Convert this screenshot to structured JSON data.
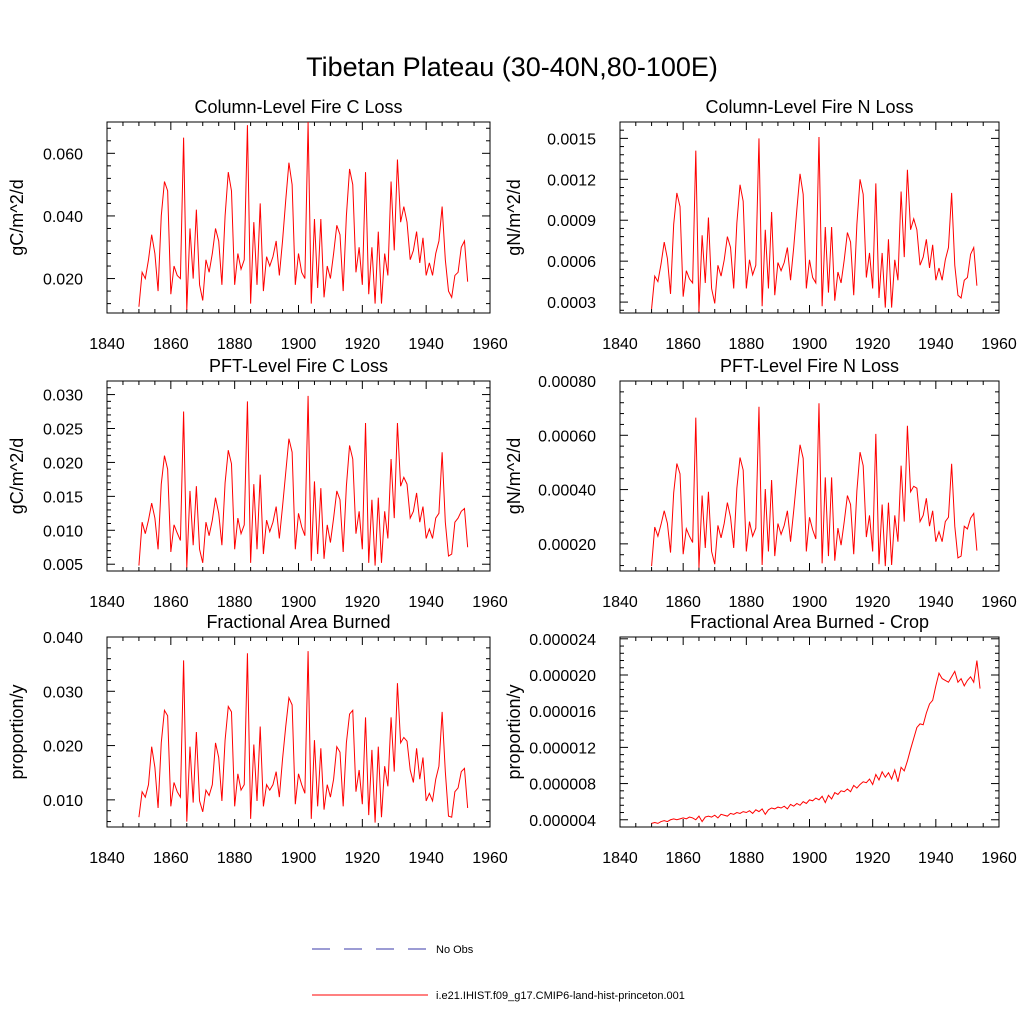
{
  "figure_title": "Tibetan Plateau (30-40N,80-100E)",
  "legend": {
    "items": [
      {
        "label": "No Obs",
        "color": "#3a3aa8",
        "dashed": true
      },
      {
        "label": "i.e21.IHIST.f09_g17.CMIP6-land-hist-princeton.001",
        "color": "#ff0000",
        "dashed": false
      }
    ]
  },
  "chart_data": [
    {
      "type": "line",
      "title": "Column-Level Fire C Loss",
      "ylabel": "gC/m^2/d",
      "xlim": [
        1840,
        1960
      ],
      "xticks": [
        "1840",
        "1860",
        "1880",
        "1900",
        "1920",
        "1940",
        "1960"
      ],
      "ylim": [
        0.009,
        0.07
      ],
      "yticks": [
        0.02,
        0.04,
        0.06
      ],
      "ytick_labels": [
        "0.020",
        "0.040",
        "0.060"
      ],
      "x_start": 1850,
      "series": [
        {
          "color": "#ff0000",
          "values": [
            0.011,
            0.022,
            0.02,
            0.026,
            0.034,
            0.028,
            0.016,
            0.04,
            0.051,
            0.048,
            0.015,
            0.024,
            0.021,
            0.02,
            0.065,
            0.01,
            0.036,
            0.02,
            0.042,
            0.018,
            0.013,
            0.026,
            0.022,
            0.028,
            0.036,
            0.032,
            0.018,
            0.04,
            0.054,
            0.048,
            0.018,
            0.028,
            0.023,
            0.026,
            0.069,
            0.012,
            0.038,
            0.018,
            0.044,
            0.016,
            0.027,
            0.024,
            0.027,
            0.032,
            0.021,
            0.032,
            0.045,
            0.057,
            0.05,
            0.018,
            0.028,
            0.022,
            0.02,
            0.07,
            0.012,
            0.039,
            0.017,
            0.039,
            0.014,
            0.024,
            0.02,
            0.028,
            0.037,
            0.034,
            0.016,
            0.04,
            0.055,
            0.05,
            0.022,
            0.03,
            0.018,
            0.054,
            0.015,
            0.03,
            0.012,
            0.035,
            0.012,
            0.028,
            0.021,
            0.051,
            0.029,
            0.058,
            0.038,
            0.043,
            0.038,
            0.026,
            0.029,
            0.035,
            0.025,
            0.033,
            0.021,
            0.025,
            0.021,
            0.028,
            0.032,
            0.043,
            0.026,
            0.016,
            0.014,
            0.021,
            0.022,
            0.03,
            0.032,
            0.019
          ]
        }
      ]
    },
    {
      "type": "line",
      "title": "Column-Level Fire N Loss",
      "ylabel": "gN/m^2/d",
      "xlim": [
        1840,
        1960
      ],
      "xticks": [
        "1840",
        "1860",
        "1880",
        "1900",
        "1920",
        "1940",
        "1960"
      ],
      "ylim": [
        0.00022,
        0.00162
      ],
      "yticks": [
        0.0003,
        0.0006,
        0.0009,
        0.0012,
        0.0015
      ],
      "ytick_labels": [
        "0.0003",
        "0.0006",
        "0.0009",
        "0.0012",
        "0.0015"
      ],
      "x_start": 1850,
      "series": [
        {
          "color": "#ff0000",
          "values": [
            0.00025,
            0.00049,
            0.00045,
            0.00058,
            0.00074,
            0.00062,
            0.00036,
            0.00087,
            0.0011,
            0.001,
            0.00034,
            0.00053,
            0.00047,
            0.00044,
            0.00141,
            0.00023,
            0.00079,
            0.00044,
            0.00092,
            0.0004,
            0.00029,
            0.00057,
            0.00049,
            0.00061,
            0.00078,
            0.0007,
            0.0004,
            0.00088,
            0.00116,
            0.00104,
            0.0004,
            0.00061,
            0.0005,
            0.00057,
            0.0015,
            0.00027,
            0.00083,
            0.0004,
            0.00096,
            0.00035,
            0.00059,
            0.00053,
            0.00059,
            0.0007,
            0.00046,
            0.0007,
            0.00098,
            0.00124,
            0.00109,
            0.0004,
            0.00061,
            0.00048,
            0.00044,
            0.00151,
            0.00027,
            0.00085,
            0.00037,
            0.00085,
            0.00031,
            0.00052,
            0.00044,
            0.00061,
            0.00081,
            0.00074,
            0.00035,
            0.00087,
            0.0012,
            0.00109,
            0.00048,
            0.00066,
            0.0004,
            0.00117,
            0.00033,
            0.00066,
            0.00026,
            0.00076,
            0.00026,
            0.00061,
            0.00046,
            0.00111,
            0.00063,
            0.00127,
            0.00083,
            0.00091,
            0.00083,
            0.00057,
            0.00063,
            0.00076,
            0.00055,
            0.00072,
            0.00046,
            0.00055,
            0.00046,
            0.00061,
            0.0007,
            0.0011,
            0.00057,
            0.00035,
            0.00033,
            0.00046,
            0.00048,
            0.00065,
            0.0007,
            0.00042
          ]
        }
      ]
    },
    {
      "type": "line",
      "title": "PFT-Level Fire C Loss",
      "ylabel": "gC/m^2/d",
      "xlim": [
        1840,
        1960
      ],
      "xticks": [
        "1840",
        "1860",
        "1880",
        "1900",
        "1920",
        "1940",
        "1960"
      ],
      "ylim": [
        0.004,
        0.032
      ],
      "yticks": [
        0.005,
        0.01,
        0.015,
        0.02,
        0.025,
        0.03
      ],
      "ytick_labels": [
        "0.005",
        "0.010",
        "0.015",
        "0.020",
        "0.025",
        "0.030"
      ],
      "x_start": 1850,
      "series": [
        {
          "color": "#ff0000",
          "values": [
            0.0048,
            0.0112,
            0.0095,
            0.0115,
            0.014,
            0.0118,
            0.0072,
            0.0168,
            0.021,
            0.019,
            0.0068,
            0.0108,
            0.0096,
            0.0085,
            0.0275,
            0.0045,
            0.0158,
            0.0078,
            0.0165,
            0.0072,
            0.0052,
            0.0112,
            0.0092,
            0.0115,
            0.0148,
            0.0125,
            0.0078,
            0.017,
            0.0218,
            0.0198,
            0.0072,
            0.0118,
            0.0095,
            0.0108,
            0.029,
            0.0052,
            0.0168,
            0.0072,
            0.0182,
            0.0065,
            0.0115,
            0.0098,
            0.0112,
            0.0135,
            0.0088,
            0.0135,
            0.0185,
            0.0235,
            0.0215,
            0.0072,
            0.0125,
            0.0105,
            0.0092,
            0.0298,
            0.0055,
            0.0172,
            0.0065,
            0.0162,
            0.0058,
            0.0108,
            0.0082,
            0.0118,
            0.0158,
            0.0145,
            0.0068,
            0.0165,
            0.0225,
            0.0205,
            0.0095,
            0.0128,
            0.0072,
            0.0258,
            0.0052,
            0.0145,
            0.0048,
            0.0148,
            0.0052,
            0.0128,
            0.0088,
            0.0205,
            0.0118,
            0.0258,
            0.0165,
            0.0178,
            0.0168,
            0.0118,
            0.0128,
            0.0155,
            0.0112,
            0.0135,
            0.0088,
            0.0102,
            0.0088,
            0.0118,
            0.0125,
            0.0215,
            0.0112,
            0.0062,
            0.0065,
            0.0112,
            0.0118,
            0.0128,
            0.0132,
            0.0075
          ]
        }
      ]
    },
    {
      "type": "line",
      "title": "PFT-Level Fire N Loss",
      "ylabel": "gN/m^2/d",
      "xlim": [
        1840,
        1960
      ],
      "xticks": [
        "1840",
        "1860",
        "1880",
        "1900",
        "1920",
        "1940",
        "1960"
      ],
      "ylim": [
        0.0001,
        0.0008
      ],
      "yticks": [
        0.0002,
        0.0004,
        0.0006,
        0.0008
      ],
      "ytick_labels": [
        "0.00020",
        "0.00040",
        "0.00060",
        "0.00080"
      ],
      "x_start": 1850,
      "series": [
        {
          "color": "#ff0000",
          "values": [
            0.000118,
            0.000262,
            0.000228,
            0.000272,
            0.000322,
            0.000276,
            0.000168,
            0.000388,
            0.000496,
            0.000458,
            0.000162,
            0.000256,
            0.000228,
            0.000205,
            0.000665,
            0.000112,
            0.000378,
            0.000185,
            0.000392,
            0.000172,
            0.000125,
            0.000268,
            0.000222,
            0.000276,
            0.000352,
            0.000298,
            0.000185,
            0.000405,
            0.000518,
            0.000472,
            0.000172,
            0.000282,
            0.000228,
            0.000258,
            0.000705,
            0.000122,
            0.000402,
            0.000172,
            0.000435,
            0.000155,
            0.000275,
            0.000235,
            0.000268,
            0.000322,
            0.000208,
            0.000322,
            0.000445,
            0.000565,
            0.000515,
            0.000172,
            0.000298,
            0.000252,
            0.000218,
            0.000718,
            0.000128,
            0.000445,
            0.000155,
            0.000445,
            0.000138,
            0.000258,
            0.000195,
            0.000282,
            0.000378,
            0.000345,
            0.000162,
            0.000395,
            0.000538,
            0.000488,
            0.000225,
            0.000305,
            0.000172,
            0.000605,
            0.000125,
            0.000345,
            0.000118,
            0.000352,
            0.000122,
            0.000305,
            0.000208,
            0.000488,
            0.000282,
            0.000635,
            0.000392,
            0.000412,
            0.000405,
            0.000282,
            0.000305,
            0.000368,
            0.000265,
            0.000322,
            0.000208,
            0.000245,
            0.000208,
            0.000282,
            0.000298,
            0.000495,
            0.000265,
            0.000148,
            0.000155,
            0.000265,
            0.000255,
            0.000295,
            0.000312,
            0.000175
          ]
        }
      ]
    },
    {
      "type": "line",
      "title": "Fractional Area Burned",
      "ylabel": "proportion/y",
      "xlim": [
        1840,
        1960
      ],
      "xticks": [
        "1840",
        "1860",
        "1880",
        "1900",
        "1920",
        "1940",
        "1960"
      ],
      "ylim": [
        0.005,
        0.04
      ],
      "yticks": [
        0.01,
        0.02,
        0.03,
        0.04
      ],
      "ytick_labels": [
        "0.010",
        "0.020",
        "0.030",
        "0.040"
      ],
      "x_start": 1850,
      "series": [
        {
          "color": "#ff0000",
          "values": [
            0.0068,
            0.0115,
            0.0105,
            0.0128,
            0.0198,
            0.016,
            0.0085,
            0.0205,
            0.0265,
            0.0255,
            0.0088,
            0.0132,
            0.0115,
            0.0105,
            0.0357,
            0.006,
            0.0198,
            0.0095,
            0.0225,
            0.0098,
            0.0078,
            0.0118,
            0.0108,
            0.0128,
            0.0205,
            0.0178,
            0.0098,
            0.021,
            0.0272,
            0.0262,
            0.0088,
            0.0148,
            0.0118,
            0.0128,
            0.037,
            0.0065,
            0.0202,
            0.0098,
            0.0235,
            0.0088,
            0.0128,
            0.0118,
            0.0128,
            0.0152,
            0.0105,
            0.0175,
            0.0235,
            0.0288,
            0.0275,
            0.0092,
            0.0148,
            0.0128,
            0.0112,
            0.0374,
            0.0065,
            0.021,
            0.0088,
            0.0195,
            0.0082,
            0.0128,
            0.0105,
            0.0138,
            0.0198,
            0.0188,
            0.0088,
            0.0205,
            0.0258,
            0.0265,
            0.0115,
            0.0155,
            0.0092,
            0.0252,
            0.0072,
            0.0192,
            0.0058,
            0.0198,
            0.0068,
            0.0162,
            0.0125,
            0.0252,
            0.0152,
            0.0315,
            0.0205,
            0.0215,
            0.0208,
            0.0155,
            0.0132,
            0.0195,
            0.0138,
            0.0178,
            0.0098,
            0.0112,
            0.0098,
            0.0138,
            0.0162,
            0.0262,
            0.0152,
            0.007,
            0.0068,
            0.0115,
            0.0122,
            0.0152,
            0.0158,
            0.0085
          ]
        }
      ]
    },
    {
      "type": "line",
      "title": "Fractional Area Burned - Crop",
      "ylabel": "proportion/y",
      "xlim": [
        1840,
        1960
      ],
      "xticks": [
        "1840",
        "1860",
        "1880",
        "1900",
        "1920",
        "1940",
        "1960"
      ],
      "ylim": [
        3.2e-06,
        2.42e-05
      ],
      "yticks": [
        4e-06,
        8e-06,
        1.2e-05,
        1.6e-05,
        2e-05,
        2.4e-05
      ],
      "ytick_labels": [
        "0.000004",
        "0.000008",
        "0.000012",
        "0.000016",
        "0.000020",
        "0.000024"
      ],
      "x_start": 1850,
      "series": [
        {
          "color": "#ff0000",
          "values": [
            3.6e-06,
            3.7e-06,
            3.6e-06,
            3.8e-06,
            3.9e-06,
            3.8e-06,
            4e-06,
            4.1e-06,
            4e-06,
            4.1e-06,
            4.2e-06,
            4.1e-06,
            4.3e-06,
            4.2e-06,
            4e-06,
            4.4e-06,
            3.8e-06,
            4.3e-06,
            4.4e-06,
            4.3e-06,
            4.5e-06,
            4.2e-06,
            4.6e-06,
            4.5e-06,
            4.4e-06,
            4.7e-06,
            4.6e-06,
            4.8e-06,
            4.7e-06,
            4.9e-06,
            4.8e-06,
            5e-06,
            4.7e-06,
            5.1e-06,
            4.9e-06,
            5.2e-06,
            4.6e-06,
            5.1e-06,
            5.3e-06,
            5.2e-06,
            5.4e-06,
            5.3e-06,
            5.5e-06,
            5.2e-06,
            5.7e-06,
            5.5e-06,
            5.8e-06,
            5.6e-06,
            6e-06,
            5.8e-06,
            6.2e-06,
            6.1e-06,
            6.4e-06,
            6.2e-06,
            6.6e-06,
            5.9e-06,
            6.7e-06,
            6.3e-06,
            7e-06,
            6.8e-06,
            7.2e-06,
            7.1e-06,
            7.4e-06,
            7.1e-06,
            7.8e-06,
            7.5e-06,
            7.9e-06,
            8.2e-06,
            8.1e-06,
            8.5e-06,
            7.9e-06,
            9e-06,
            8.4e-06,
            9.3e-06,
            8.7e-06,
            9.2e-06,
            8.5e-06,
            9.5e-06,
            8.2e-06,
            9.8e-06,
            9.4e-06,
            1.05e-05,
            1.18e-05,
            1.3e-05,
            1.42e-05,
            1.46e-05,
            1.45e-05,
            1.58e-05,
            1.68e-05,
            1.72e-05,
            1.88e-05,
            2.02e-05,
            1.96e-05,
            1.94e-05,
            1.92e-05,
            1.98e-05,
            2.04e-05,
            1.92e-05,
            1.96e-05,
            1.88e-05,
            1.94e-05,
            1.98e-05,
            1.92e-05,
            2.16e-05,
            1.85e-05
          ]
        }
      ]
    }
  ]
}
